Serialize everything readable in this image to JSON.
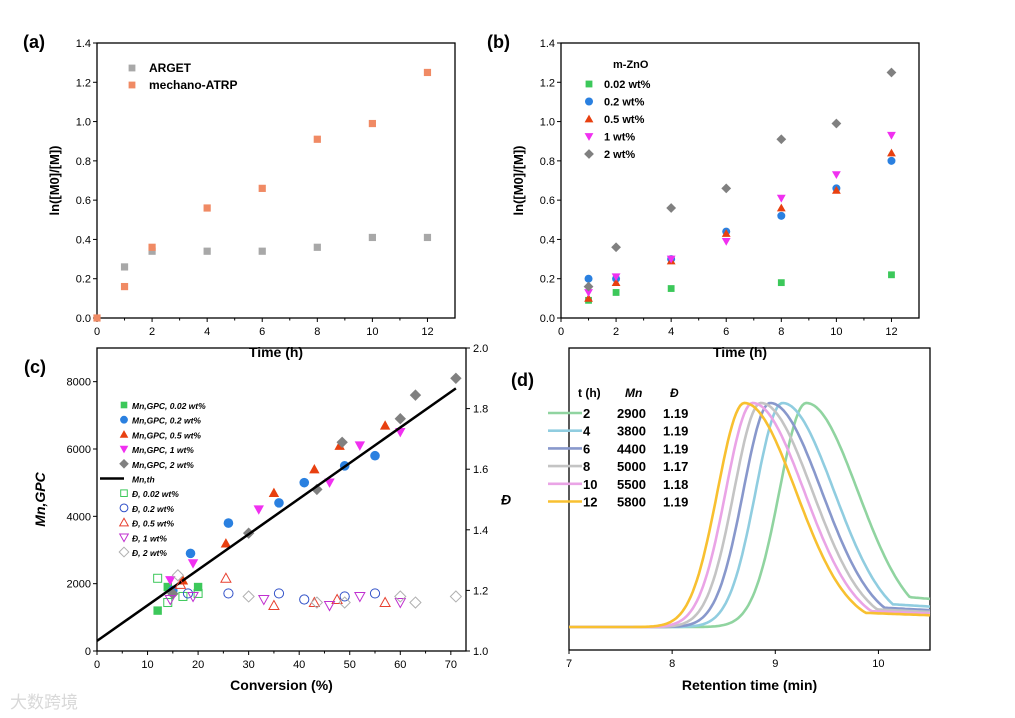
{
  "watermark": "大数跨境",
  "chart_data": [
    {
      "panel": "(a)",
      "type": "scatter",
      "xlabel": "Time (h)",
      "ylabel": "ln([M0]/[M])",
      "xlim": [
        0,
        13
      ],
      "ylim": [
        0,
        1.4
      ],
      "xticks": [
        0,
        2,
        4,
        6,
        8,
        10,
        12
      ],
      "yticks": [
        0.0,
        0.2,
        0.4,
        0.6,
        0.8,
        1.0,
        1.2,
        1.4
      ],
      "legend": "top-left",
      "series": [
        {
          "name": "ARGET",
          "marker": "square",
          "color": "#a8a8a8",
          "points": [
            [
              1,
              0.26
            ],
            [
              2,
              0.34
            ],
            [
              4,
              0.34
            ],
            [
              6,
              0.34
            ],
            [
              8,
              0.36
            ],
            [
              10,
              0.41
            ],
            [
              12,
              0.41
            ]
          ]
        },
        {
          "name": "mechano-ATRP",
          "marker": "square",
          "color": "#f08a64",
          "points": [
            [
              0,
              0
            ],
            [
              1,
              0.16
            ],
            [
              2,
              0.36
            ],
            [
              4,
              0.56
            ],
            [
              6,
              0.66
            ],
            [
              8,
              0.91
            ],
            [
              10,
              0.99
            ],
            [
              12,
              1.25
            ]
          ]
        }
      ]
    },
    {
      "panel": "(b)",
      "type": "scatter",
      "xlabel": "Time (h)",
      "ylabel": "ln([M0]/[M])",
      "xlim": [
        0,
        13
      ],
      "ylim": [
        0,
        1.4
      ],
      "xticks": [
        0,
        2,
        4,
        6,
        8,
        10,
        12
      ],
      "yticks": [
        0.0,
        0.2,
        0.4,
        0.6,
        0.8,
        1.0,
        1.2,
        1.4
      ],
      "legend_title": "m-ZnO",
      "legend": "top-left",
      "series": [
        {
          "name": "0.02 wt%",
          "marker": "square",
          "color": "#3cc85a",
          "points": [
            [
              1,
              0.09
            ],
            [
              2,
              0.13
            ],
            [
              4,
              0.15
            ],
            [
              8,
              0.18
            ],
            [
              12,
              0.22
            ]
          ]
        },
        {
          "name": "0.2 wt%",
          "marker": "circle",
          "color": "#2a80e0",
          "points": [
            [
              1,
              0.2
            ],
            [
              2,
              0.2
            ],
            [
              4,
              0.3
            ],
            [
              6,
              0.44
            ],
            [
              8,
              0.52
            ],
            [
              10,
              0.66
            ],
            [
              12,
              0.8
            ]
          ]
        },
        {
          "name": "0.5 wt%",
          "marker": "triangle",
          "color": "#e84010",
          "points": [
            [
              1,
              0.1
            ],
            [
              2,
              0.18
            ],
            [
              4,
              0.29
            ],
            [
              6,
              0.43
            ],
            [
              8,
              0.56
            ],
            [
              10,
              0.65
            ],
            [
              12,
              0.84
            ]
          ]
        },
        {
          "name": "1 wt%",
          "marker": "triangle-down",
          "color": "#f030f0",
          "points": [
            [
              1,
              0.13
            ],
            [
              2,
              0.21
            ],
            [
              4,
              0.3
            ],
            [
              6,
              0.39
            ],
            [
              8,
              0.61
            ],
            [
              10,
              0.73
            ],
            [
              12,
              0.93
            ]
          ]
        },
        {
          "name": "2 wt%",
          "marker": "diamond",
          "color": "#808080",
          "points": [
            [
              1,
              0.16
            ],
            [
              2,
              0.36
            ],
            [
              4,
              0.56
            ],
            [
              6,
              0.66
            ],
            [
              8,
              0.91
            ],
            [
              10,
              0.99
            ],
            [
              12,
              1.25
            ]
          ]
        }
      ]
    },
    {
      "panel": "(c)",
      "type": "scatter",
      "xlabel": "Conversion (%)",
      "ylabel": "Mn,GPC",
      "y2label": "Đ",
      "xlim": [
        0,
        73
      ],
      "ylim": [
        0,
        9000
      ],
      "y2lim": [
        1.0,
        2.0
      ],
      "xticks": [
        0,
        10,
        20,
        30,
        40,
        50,
        60,
        70
      ],
      "yticks": [
        0,
        2000,
        4000,
        6000,
        8000
      ],
      "y2ticks": [
        1.0,
        1.2,
        1.4,
        1.6,
        1.8,
        2.0
      ],
      "legend": "top-left",
      "series": [
        {
          "name": "Mn,GPC, 0.02 wt%",
          "axis": "left",
          "marker": "square",
          "color": "#3cc85a",
          "points": [
            [
              12,
              1200
            ],
            [
              14,
              1900
            ],
            [
              20,
              1900
            ]
          ]
        },
        {
          "name": "Mn,GPC, 0.2 wt%",
          "axis": "left",
          "marker": "circle",
          "color": "#2a80e0",
          "points": [
            [
              15,
              1800
            ],
            [
              18.5,
              2900
            ],
            [
              26,
              3800
            ],
            [
              36,
              4400
            ],
            [
              41,
              5000
            ],
            [
              49,
              5500
            ],
            [
              55,
              5800
            ]
          ]
        },
        {
          "name": "Mn,GPC, 0.5 wt%",
          "axis": "left",
          "marker": "triangle",
          "color": "#e84010",
          "points": [
            [
              17,
              2100
            ],
            [
              25.5,
              3200
            ],
            [
              35,
              4700
            ],
            [
              43,
              5400
            ],
            [
              48,
              6100
            ],
            [
              57,
              6700
            ]
          ]
        },
        {
          "name": "Mn,GPC, 1 wt%",
          "axis": "left",
          "marker": "triangle-down",
          "color": "#f030f0",
          "points": [
            [
              14.5,
              2100
            ],
            [
              19,
              2600
            ],
            [
              32,
              4200
            ],
            [
              46,
              5000
            ],
            [
              52,
              6100
            ],
            [
              60,
              6500
            ]
          ]
        },
        {
          "name": "Mn,GPC, 2 wt%",
          "axis": "left",
          "marker": "diamond",
          "color": "#808080",
          "points": [
            [
              15,
              1700
            ],
            [
              30,
              3500
            ],
            [
              43.5,
              4800
            ],
            [
              48.5,
              6200
            ],
            [
              60,
              6900
            ],
            [
              63,
              7600
            ],
            [
              71,
              8100
            ]
          ]
        },
        {
          "name": "Mn,th",
          "axis": "left",
          "marker": "line",
          "color": "#000000",
          "points": [
            [
              0,
              300
            ],
            [
              71,
              7800
            ]
          ]
        },
        {
          "name": "Đ, 0.02 wt%",
          "axis": "right",
          "marker": "square-open",
          "color": "#3cc85a",
          "points": [
            [
              12,
              1.24
            ],
            [
              14,
              1.16
            ],
            [
              17,
              1.18
            ],
            [
              20,
              1.19
            ]
          ]
        },
        {
          "name": "Đ, 0.2 wt%",
          "axis": "right",
          "marker": "circle-open",
          "color": "#3050c8",
          "points": [
            [
              18,
              1.19
            ],
            [
              26,
              1.19
            ],
            [
              36,
              1.19
            ],
            [
              41,
              1.17
            ],
            [
              49,
              1.18
            ],
            [
              55,
              1.19
            ]
          ]
        },
        {
          "name": "Đ, 0.5 wt%",
          "axis": "right",
          "marker": "triangle-open",
          "color": "#e84030",
          "points": [
            [
              16.5,
              1.22
            ],
            [
              25.5,
              1.24
            ],
            [
              35,
              1.15
            ],
            [
              43,
              1.16
            ],
            [
              47.5,
              1.17
            ],
            [
              57,
              1.16
            ]
          ]
        },
        {
          "name": "Đ, 1 wt%",
          "axis": "right",
          "marker": "triangle-down-open",
          "color": "#c030d0",
          "points": [
            [
              14.5,
              1.17
            ],
            [
              19,
              1.18
            ],
            [
              33,
              1.17
            ],
            [
              46,
              1.15
            ],
            [
              52,
              1.18
            ],
            [
              60,
              1.16
            ]
          ]
        },
        {
          "name": "Đ, 2 wt%",
          "axis": "right",
          "marker": "diamond-open",
          "color": "#b0b0b0",
          "points": [
            [
              16,
              1.25
            ],
            [
              30,
              1.18
            ],
            [
              43.5,
              1.16
            ],
            [
              49,
              1.16
            ],
            [
              60,
              1.18
            ],
            [
              63,
              1.16
            ],
            [
              71,
              1.18
            ]
          ]
        }
      ]
    },
    {
      "panel": "(d)",
      "type": "line",
      "xlabel": "Retention time (min)",
      "xlim": [
        7,
        10.5
      ],
      "xticks": [
        7,
        8,
        9,
        10
      ],
      "table_headers": [
        "t (h)",
        "Mn",
        "Đ"
      ],
      "series": [
        {
          "t": "2",
          "Mn": "2900",
          "D": "1.19",
          "color": "#90d4a0",
          "peak": 9.3,
          "tail": 0.18
        },
        {
          "t": "4",
          "Mn": "3800",
          "D": "1.19",
          "color": "#90cde0",
          "peak": 9.07,
          "tail": 0.14
        },
        {
          "t": "6",
          "Mn": "4400",
          "D": "1.19",
          "color": "#8898cc",
          "peak": 8.95,
          "tail": 0.12
        },
        {
          "t": "8",
          "Mn": "5000",
          "D": "1.17",
          "color": "#c4c4c4",
          "peak": 8.86,
          "tail": 0.11
        },
        {
          "t": "10",
          "Mn": "5500",
          "D": "1.18",
          "color": "#eaa4e6",
          "peak": 8.78,
          "tail": 0.1
        },
        {
          "t": "12",
          "Mn": "5800",
          "D": "1.19",
          "color": "#f8c030",
          "peak": 8.7,
          "tail": 0.09
        }
      ]
    }
  ]
}
